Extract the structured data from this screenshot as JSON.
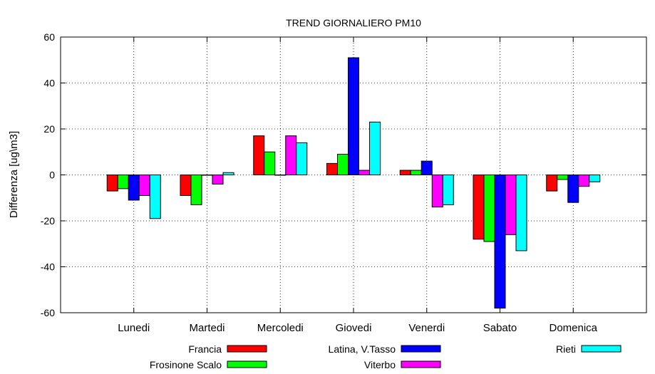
{
  "chart_data": {
    "type": "bar",
    "title": "TREND GIORNALIERO PM10",
    "xlabel": "",
    "ylabel": "Differenza [ug\\m3]",
    "ylim": [
      -60,
      60
    ],
    "yticks": [
      60,
      40,
      20,
      0,
      -20,
      -40,
      -60
    ],
    "grid": true,
    "legend_position": "bottom",
    "categories": [
      "Lunedi",
      "Martedi",
      "Mercoledi",
      "Giovedi",
      "Venerdi",
      "Sabato",
      "Domenica"
    ],
    "series": [
      {
        "name": "Francia",
        "color": "#ff0000",
        "values": [
          -7,
          -9,
          17,
          5,
          2,
          -28,
          -7
        ]
      },
      {
        "name": "Frosinone Scalo",
        "color": "#00ff00",
        "values": [
          -6,
          -13,
          10,
          9,
          2,
          -29,
          -2
        ]
      },
      {
        "name": "Latina, V.Tasso",
        "color": "#0000ff",
        "values": [
          -11,
          0,
          0,
          51,
          6,
          -58,
          -12
        ]
      },
      {
        "name": "Viterbo",
        "color": "#ff00ff",
        "values": [
          -9,
          -4,
          17,
          2,
          -14,
          -26,
          -5
        ]
      },
      {
        "name": "Rieti",
        "color": "#00ffff",
        "values": [
          -19,
          1,
          14,
          23,
          -13,
          -33,
          -3
        ]
      }
    ]
  }
}
